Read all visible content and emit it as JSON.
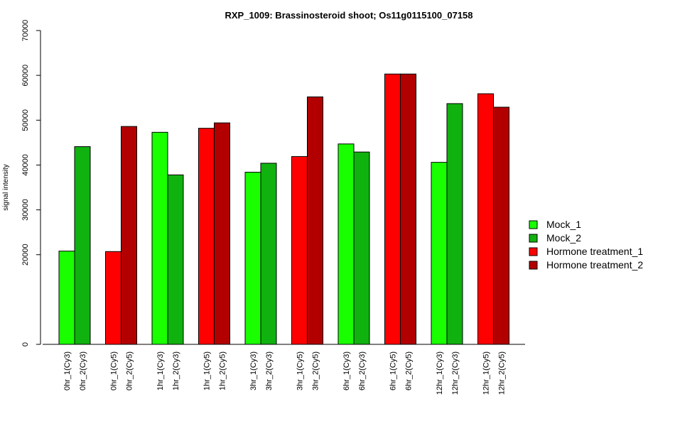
{
  "chart_data": {
    "type": "bar",
    "title": "RXP_1009: Brassinosteroid shoot; Os11g0115100_07158",
    "xlabel": "",
    "ylabel": "signal intensity",
    "ylim": [
      0,
      70000
    ],
    "y_ticks": [
      0,
      20000,
      30000,
      40000,
      50000,
      60000,
      70000
    ],
    "y_tick_labels": [
      "0",
      "20000",
      "30000",
      "40000",
      "50000",
      "60000",
      "70000"
    ],
    "legend_position": "right",
    "grid": false,
    "series_styles": [
      {
        "name": "Mock_1",
        "color": "#19ff00"
      },
      {
        "name": "Mock_2",
        "color": "#10b20f"
      },
      {
        "name": "Hormone treatment_1",
        "color": "#ff0000"
      },
      {
        "name": "Hormone treatment_2",
        "color": "#b20000"
      }
    ],
    "groups": [
      {
        "bars": [
          {
            "label": "0hr_1(Cy3)",
            "value": 20800,
            "series": 0
          },
          {
            "label": "0hr_2(Cy3)",
            "value": 44100,
            "series": 1
          }
        ]
      },
      {
        "bars": [
          {
            "label": "0hr_1(Cy5)",
            "value": 20700,
            "series": 2
          },
          {
            "label": "0hr_2(Cy5)",
            "value": 48600,
            "series": 3
          }
        ]
      },
      {
        "bars": [
          {
            "label": "1hr_1(Cy3)",
            "value": 47300,
            "series": 0
          },
          {
            "label": "1hr_2(Cy3)",
            "value": 37800,
            "series": 1
          }
        ]
      },
      {
        "bars": [
          {
            "label": "1hr_1(Cy5)",
            "value": 48200,
            "series": 2
          },
          {
            "label": "1hr_2(Cy5)",
            "value": 49400,
            "series": 3
          }
        ]
      },
      {
        "bars": [
          {
            "label": "3hr_1(Cy3)",
            "value": 38400,
            "series": 0
          },
          {
            "label": "3hr_2(Cy3)",
            "value": 40400,
            "series": 1
          }
        ]
      },
      {
        "bars": [
          {
            "label": "3hr_1(Cy5)",
            "value": 41900,
            "series": 2
          },
          {
            "label": "3hr_2(Cy5)",
            "value": 55200,
            "series": 3
          }
        ]
      },
      {
        "bars": [
          {
            "label": "6hr_1(Cy3)",
            "value": 44700,
            "series": 0
          },
          {
            "label": "6hr_2(Cy3)",
            "value": 42900,
            "series": 1
          }
        ]
      },
      {
        "bars": [
          {
            "label": "6hr_1(Cy5)",
            "value": 60300,
            "series": 2
          },
          {
            "label": "6hr_2(Cy5)",
            "value": 60300,
            "series": 3
          }
        ]
      },
      {
        "bars": [
          {
            "label": "12hr_1(Cy3)",
            "value": 40600,
            "series": 0
          },
          {
            "label": "12hr_2(Cy3)",
            "value": 53700,
            "series": 1
          }
        ]
      },
      {
        "bars": [
          {
            "label": "12hr_1(Cy5)",
            "value": 55900,
            "series": 2
          },
          {
            "label": "12hr_2(Cy5)",
            "value": 52900,
            "series": 3
          }
        ]
      }
    ]
  }
}
